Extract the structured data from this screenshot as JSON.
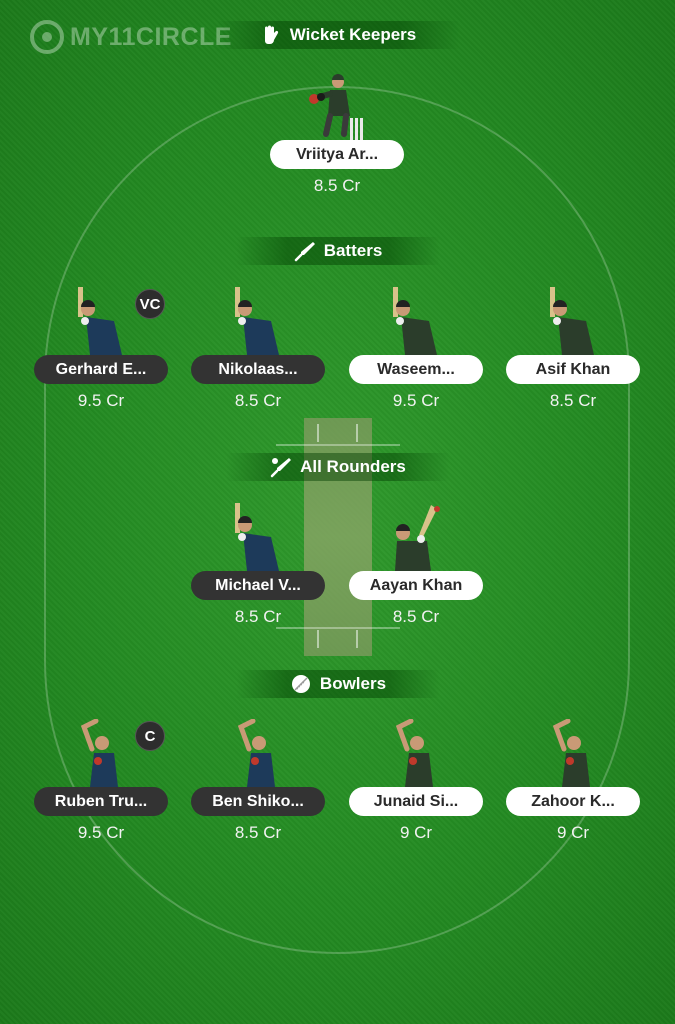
{
  "brand": {
    "logo_text": "MY11CIRCLE"
  },
  "sections": {
    "wicket_keepers": "Wicket Keepers",
    "batters": "Batters",
    "all_rounders": "All Rounders",
    "bowlers": "Bowlers"
  },
  "colors": {
    "field": "#238a22",
    "pill_dark": "#333333",
    "pill_light": "#ffffff",
    "team_a_jersey": "#1d3a5a",
    "team_b_jersey": "#2b3d2b"
  },
  "wicket_keepers": [
    {
      "name": "Vriitya Ar...",
      "credits": "8.5 Cr",
      "pill": "light",
      "icon": "wicket-keeper-figure-icon"
    }
  ],
  "batters": [
    {
      "name": "Gerhard E...",
      "credits": "9.5 Cr",
      "pill": "dark",
      "role": "VC",
      "icon": "batter-figure-icon"
    },
    {
      "name": "Nikolaas...",
      "credits": "8.5 Cr",
      "pill": "dark",
      "icon": "batter-figure-icon"
    },
    {
      "name": "Waseem...",
      "credits": "9.5 Cr",
      "pill": "light",
      "icon": "batter-figure-icon"
    },
    {
      "name": "Asif Khan",
      "credits": "8.5 Cr",
      "pill": "light",
      "icon": "batter-figure-icon"
    }
  ],
  "all_rounders": [
    {
      "name": "Michael V...",
      "credits": "8.5 Cr",
      "pill": "dark",
      "icon": "batter-figure-icon"
    },
    {
      "name": "Aayan Khan",
      "credits": "8.5 Cr",
      "pill": "light",
      "icon": "all-rounder-figure-icon"
    }
  ],
  "bowlers": [
    {
      "name": "Ruben Tru...",
      "credits": "9.5 Cr",
      "pill": "dark",
      "role": "C",
      "icon": "bowler-figure-icon"
    },
    {
      "name": "Ben Shiko...",
      "credits": "8.5 Cr",
      "pill": "dark",
      "icon": "bowler-figure-icon"
    },
    {
      "name": "Junaid Si...",
      "credits": "9 Cr",
      "pill": "light",
      "icon": "bowler-figure-icon"
    },
    {
      "name": "Zahoor K...",
      "credits": "9 Cr",
      "pill": "light",
      "icon": "bowler-figure-icon"
    }
  ]
}
